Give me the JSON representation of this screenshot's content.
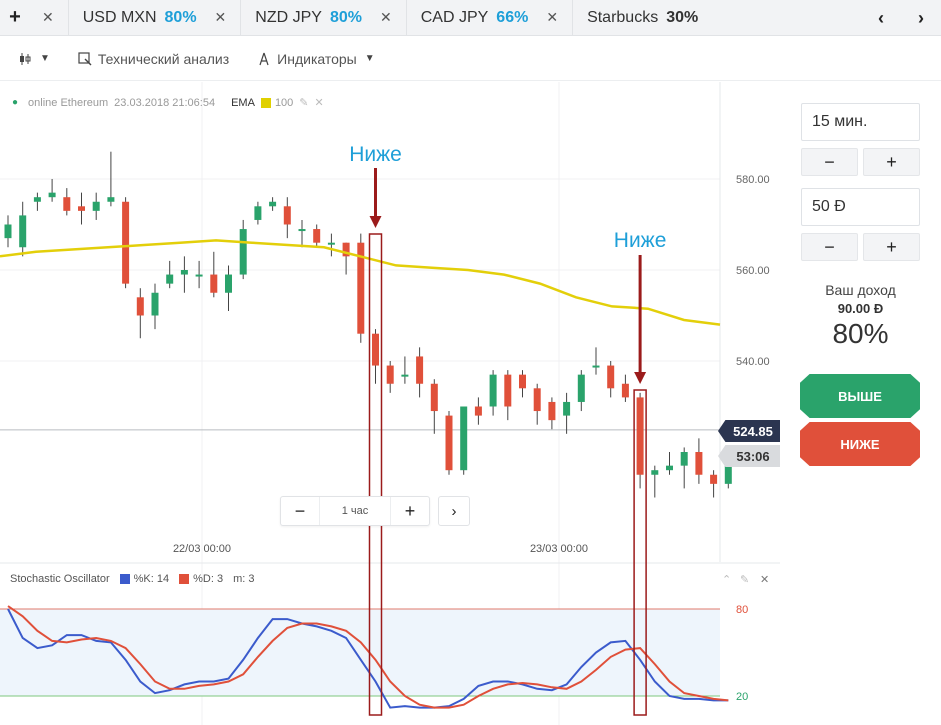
{
  "tabs": {
    "add_icon": "plus-icon",
    "items": [
      {
        "symbol": "USD MXN",
        "percent": "80%"
      },
      {
        "symbol": "NZD JPY",
        "percent": "80%"
      },
      {
        "symbol": "CAD JPY",
        "percent": "66%"
      },
      {
        "symbol": "Starbucks",
        "percent": "30%"
      }
    ],
    "close_glyph": "✕",
    "prev_glyph": "‹",
    "next_glyph": "›"
  },
  "toolbar": {
    "tech_analysis_label": "Технический анализ",
    "indicators_label": "Индикаторы"
  },
  "asset": {
    "name": "online Ethereum",
    "datetime": "23.03.2018 21:06:54",
    "ema_label": "EMA",
    "ema_period": "100"
  },
  "annotations": {
    "label": "Ниже"
  },
  "price_axis": [
    "580.00",
    "560.00",
    "540.00"
  ],
  "time_axis": [
    "22/03 00:00",
    "23/03 00:00"
  ],
  "current_price": "524.85",
  "countdown": "53:06",
  "zoom": {
    "minus": "−",
    "label": "1 час",
    "plus": "+",
    "next": "›"
  },
  "oscillator": {
    "name": "Stochastic Oscillator",
    "k_label": "%K: 14",
    "d_label": "%D: 3",
    "m_label": "m: 3",
    "upper_level": "80",
    "lower_level": "20"
  },
  "side": {
    "duration": "15 мин.",
    "amount": "50 Ð",
    "minus": "−",
    "plus": "+",
    "income_label": "Ваш доход",
    "income_value": "90.00 Ð",
    "income_percent": "80%",
    "up_label": "ВЫШЕ",
    "down_label": "НИЖЕ"
  },
  "colors": {
    "accent_blue": "#1e9fd8",
    "up_green": "#2aa36b",
    "down_red": "#e0503a",
    "ema_yellow": "#e3cf0a",
    "k_line": "#3b5bcc",
    "d_line": "#e0503a",
    "annotation_dark_red": "#9b1b1b"
  },
  "chart_data": [
    {
      "type": "candlestick",
      "title": "online Ethereum",
      "y_ticks": [
        580,
        560,
        540
      ],
      "x_ticks": [
        "22/03 00:00",
        "23/03 00:00"
      ],
      "current_price": 524.85,
      "candles": [
        {
          "o": 567,
          "c": 570,
          "h": 572,
          "l": 565
        },
        {
          "o": 565,
          "c": 572,
          "h": 575,
          "l": 563
        },
        {
          "o": 575,
          "c": 576,
          "h": 577,
          "l": 573
        },
        {
          "o": 576,
          "c": 577,
          "h": 580,
          "l": 575
        },
        {
          "o": 576,
          "c": 573,
          "h": 578,
          "l": 572
        },
        {
          "o": 574,
          "c": 573,
          "h": 577,
          "l": 570
        },
        {
          "o": 573,
          "c": 575,
          "h": 577,
          "l": 571
        },
        {
          "o": 575,
          "c": 576,
          "h": 586,
          "l": 574
        },
        {
          "o": 575,
          "c": 557,
          "h": 576,
          "l": 556
        },
        {
          "o": 554,
          "c": 550,
          "h": 556,
          "l": 545
        },
        {
          "o": 550,
          "c": 555,
          "h": 557,
          "l": 547
        },
        {
          "o": 557,
          "c": 559,
          "h": 562,
          "l": 556
        },
        {
          "o": 559,
          "c": 560,
          "h": 563,
          "l": 555
        },
        {
          "o": 559,
          "c": 559,
          "h": 562,
          "l": 556
        },
        {
          "o": 559,
          "c": 555,
          "h": 564,
          "l": 554
        },
        {
          "o": 555,
          "c": 559,
          "h": 561,
          "l": 551
        },
        {
          "o": 559,
          "c": 569,
          "h": 571,
          "l": 558
        },
        {
          "o": 571,
          "c": 574,
          "h": 575,
          "l": 570
        },
        {
          "o": 574,
          "c": 575,
          "h": 576,
          "l": 573
        },
        {
          "o": 574,
          "c": 570,
          "h": 576,
          "l": 567
        },
        {
          "o": 569,
          "c": 569,
          "h": 571,
          "l": 565
        },
        {
          "o": 569,
          "c": 566,
          "h": 570,
          "l": 565
        },
        {
          "o": 566,
          "c": 566,
          "h": 568,
          "l": 563
        },
        {
          "o": 566,
          "c": 563,
          "h": 566,
          "l": 559
        },
        {
          "o": 566,
          "c": 546,
          "h": 568,
          "l": 544
        },
        {
          "o": 546,
          "c": 539,
          "h": 547,
          "l": 535
        },
        {
          "o": 539,
          "c": 535,
          "h": 540,
          "l": 533
        },
        {
          "o": 537,
          "c": 537,
          "h": 541,
          "l": 535
        },
        {
          "o": 541,
          "c": 535,
          "h": 543,
          "l": 532
        },
        {
          "o": 535,
          "c": 529,
          "h": 536,
          "l": 524
        },
        {
          "o": 528,
          "c": 516,
          "h": 529,
          "l": 515
        },
        {
          "o": 516,
          "c": 530,
          "h": 530,
          "l": 515
        },
        {
          "o": 530,
          "c": 528,
          "h": 532,
          "l": 526
        },
        {
          "o": 530,
          "c": 537,
          "h": 538,
          "l": 528
        },
        {
          "o": 537,
          "c": 530,
          "h": 538,
          "l": 527
        },
        {
          "o": 537,
          "c": 534,
          "h": 538,
          "l": 532
        },
        {
          "o": 534,
          "c": 529,
          "h": 535,
          "l": 526
        },
        {
          "o": 531,
          "c": 527,
          "h": 532,
          "l": 525
        },
        {
          "o": 528,
          "c": 531,
          "h": 533,
          "l": 524
        },
        {
          "o": 531,
          "c": 537,
          "h": 538,
          "l": 529
        },
        {
          "o": 539,
          "c": 539,
          "h": 543,
          "l": 537
        },
        {
          "o": 539,
          "c": 534,
          "h": 540,
          "l": 532
        },
        {
          "o": 535,
          "c": 532,
          "h": 537,
          "l": 531
        },
        {
          "o": 532,
          "c": 515,
          "h": 533,
          "l": 512
        },
        {
          "o": 515,
          "c": 516,
          "h": 517,
          "l": 510
        },
        {
          "o": 516,
          "c": 517,
          "h": 520,
          "l": 515
        },
        {
          "o": 517,
          "c": 520,
          "h": 521,
          "l": 512
        },
        {
          "o": 520,
          "c": 515,
          "h": 523,
          "l": 513
        },
        {
          "o": 515,
          "c": 513,
          "h": 516,
          "l": 510
        },
        {
          "o": 513,
          "c": 520,
          "h": 521,
          "l": 512
        }
      ],
      "ema_100": [
        563,
        564,
        564.5,
        565,
        565.5,
        566,
        566.5,
        566,
        565.5,
        565,
        563,
        561,
        560.5,
        560,
        559,
        557,
        554,
        552,
        551.5,
        549,
        548
      ]
    },
    {
      "type": "line",
      "title": "Stochastic Oscillator",
      "ylim": [
        0,
        100
      ],
      "levels": [
        80,
        20
      ],
      "series": [
        {
          "name": "%K",
          "values": [
            80,
            60,
            53,
            55,
            62,
            62,
            58,
            57,
            45,
            30,
            22,
            24,
            28,
            30,
            30,
            32,
            45,
            60,
            73,
            73,
            70,
            68,
            65,
            60,
            45,
            30,
            12,
            13,
            12,
            12,
            13,
            18,
            27,
            30,
            30,
            28,
            25,
            24,
            28,
            40,
            50,
            57,
            58,
            45,
            30,
            20,
            18,
            18,
            17,
            17
          ]
        },
        {
          "name": "%D",
          "values": [
            82,
            75,
            65,
            58,
            57,
            59,
            60,
            58,
            53,
            42,
            30,
            25,
            25,
            27,
            28,
            30,
            35,
            47,
            58,
            67,
            70,
            70,
            68,
            65,
            57,
            45,
            30,
            20,
            14,
            12,
            12,
            14,
            20,
            25,
            28,
            29,
            28,
            26,
            25,
            30,
            38,
            47,
            52,
            53,
            42,
            30,
            22,
            20,
            18,
            17
          ]
        }
      ]
    }
  ]
}
